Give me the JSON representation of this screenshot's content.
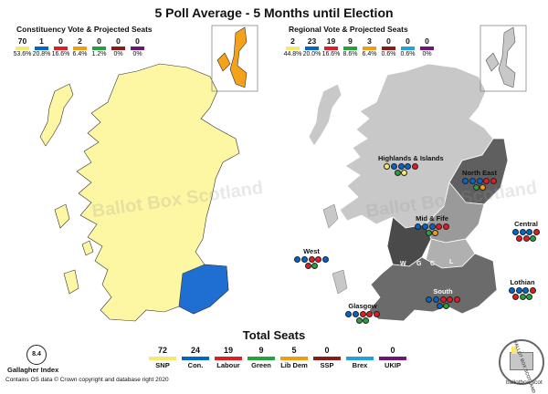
{
  "title": "5 Poll Average - 5 Months until Election",
  "colors": {
    "snp": "#f7e86e",
    "con": "#0066cc",
    "lab": "#e31b23",
    "green": "#22a33c",
    "libdem": "#f39c12",
    "ssp": "#8b1a1a",
    "brex": "#1fa3df",
    "ukip": "#70147a",
    "snp_map": "#fdf6a3",
    "ld_map": "#f4a21a"
  },
  "constituency": {
    "heading": "Constituency Vote & Projected Seats",
    "seats": [
      "70",
      "1",
      "0",
      "2",
      "0",
      "0",
      "0"
    ],
    "pcts": [
      "53.6%",
      "20.8%",
      "16.6%",
      "6.4%",
      "1.2%",
      "0%",
      "0%"
    ],
    "swatches": [
      "#f7e86e",
      "#0066cc",
      "#e31b23",
      "#f39c12",
      "#22a33c",
      "#8b1a1a",
      "#70147a"
    ]
  },
  "regional": {
    "heading": "Regional Vote & Projected Seats",
    "seats": [
      "2",
      "23",
      "19",
      "9",
      "3",
      "0",
      "0",
      "0"
    ],
    "pcts": [
      "44.8%",
      "20.0%",
      "16.6%",
      "8.6%",
      "6.4%",
      "0.6%",
      "0.6%",
      "0%"
    ],
    "swatches": [
      "#f7e86e",
      "#0066cc",
      "#e31b23",
      "#22a33c",
      "#f39c12",
      "#8b1a1a",
      "#1fa3df",
      "#70147a"
    ]
  },
  "regions": {
    "highlands": {
      "name": "Highlands & Islands",
      "dots": [
        "#f7e86e",
        "#0066cc",
        "#0066cc",
        "#0066cc",
        "#e31b23",
        "#22a33c",
        "#f7e86e"
      ]
    },
    "north_east": {
      "name": "North East",
      "dots": [
        "#0066cc",
        "#0066cc",
        "#0066cc",
        "#e31b23",
        "#e31b23",
        "#22a33c",
        "#f39c12"
      ]
    },
    "mid_fife": {
      "name": "Mid & Fife",
      "dots": [
        "#0066cc",
        "#0066cc",
        "#0066cc",
        "#e31b23",
        "#e31b23",
        "#22a33c",
        "#f39c12"
      ]
    },
    "central": {
      "name": "Central",
      "dots": [
        "#0066cc",
        "#0066cc",
        "#0066cc",
        "#e31b23",
        "#e31b23",
        "#e31b23",
        "#22a33c"
      ]
    },
    "west": {
      "name": "West",
      "dots": [
        "#0066cc",
        "#0066cc",
        "#e31b23",
        "#e31b23",
        "#0066cc",
        "#e31b23",
        "#22a33c"
      ]
    },
    "lothian": {
      "name": "Lothian",
      "dots": [
        "#0066cc",
        "#0066cc",
        "#0066cc",
        "#e31b23",
        "#e31b23",
        "#22a33c",
        "#22a33c"
      ]
    },
    "south": {
      "name": "South",
      "dots": [
        "#0066cc",
        "#0066cc",
        "#e31b23",
        "#e31b23",
        "#e31b23",
        "#0066cc",
        "#22a33c"
      ]
    },
    "glasgow": {
      "name": "Glasgow",
      "dots": [
        "#0066cc",
        "#0066cc",
        "#e31b23",
        "#e31b23",
        "#e31b23",
        "#22a33c",
        "#22a33c"
      ]
    }
  },
  "map_letters": [
    "W",
    "G",
    "C",
    "L"
  ],
  "total": {
    "heading": "Total Seats",
    "parties": [
      {
        "num": "72",
        "name": "SNP",
        "color": "#f7e86e"
      },
      {
        "num": "24",
        "name": "Con.",
        "color": "#0066cc"
      },
      {
        "num": "19",
        "name": "Labour",
        "color": "#e31b23"
      },
      {
        "num": "9",
        "name": "Green",
        "color": "#22a33c"
      },
      {
        "num": "5",
        "name": "Lib Dem",
        "color": "#f39c12"
      },
      {
        "num": "0",
        "name": "SSP",
        "color": "#8b1a1a"
      },
      {
        "num": "0",
        "name": "Brex",
        "color": "#1fa3df"
      },
      {
        "num": "0",
        "name": "UKIP",
        "color": "#70147a"
      }
    ]
  },
  "gallagher": {
    "value": "8.4",
    "label": "Gallagher Index"
  },
  "copyright": "Contains OS data © Crown copyright and database right 2020",
  "watermark": "Ballot Box Scotland",
  "stamp_text": "BALLOT BOX SCOTLAND",
  "site": "ballotbox.scot"
}
